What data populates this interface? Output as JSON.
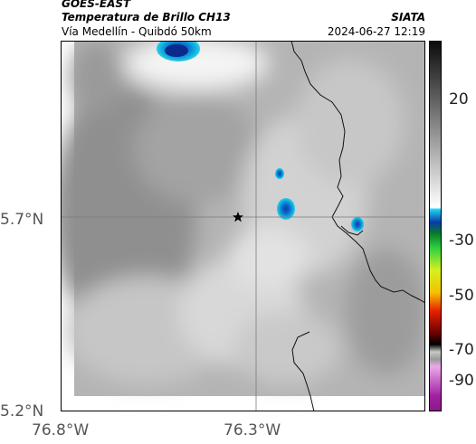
{
  "header": {
    "satellite": "GOES-EAST",
    "product": "Temperatura de Brillo CH13",
    "route": "Vía Medellín - Quibdó 50km",
    "agency": "SIATA",
    "datetime": "2024-06-27 12:19"
  },
  "map": {
    "lat_labels": [
      "5.7°N",
      "5.2°N"
    ],
    "lon_labels": [
      "76.8°W",
      "76.3°W"
    ],
    "marker_icon": "star-icon"
  },
  "colorbar": {
    "ticks": [
      "20",
      "-30",
      "-50",
      "-70",
      "-90"
    ]
  }
}
